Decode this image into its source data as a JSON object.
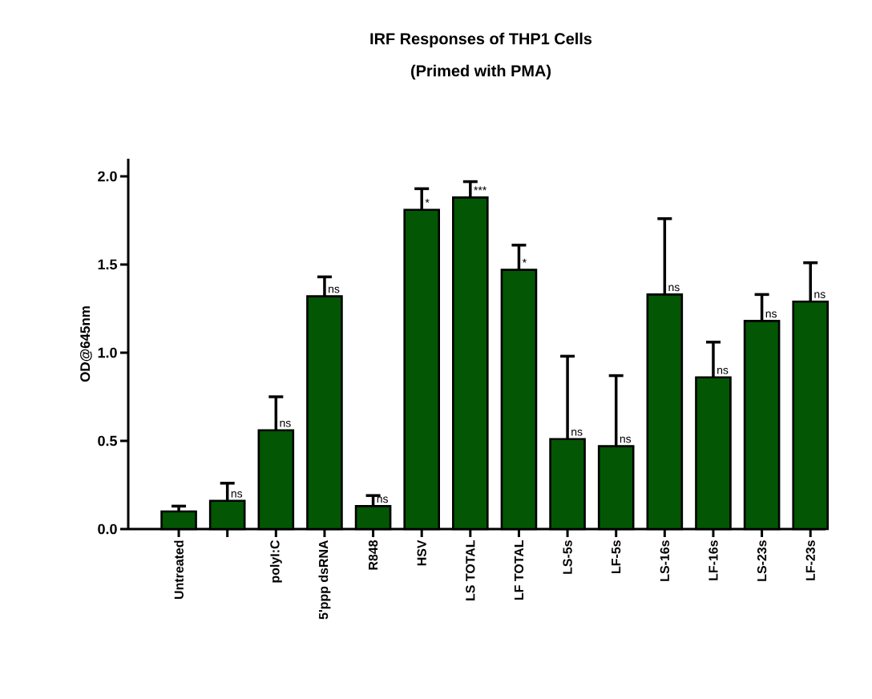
{
  "chart_data": {
    "type": "bar",
    "title": "IRF Responses of THP1 Cells",
    "subtitle": "(Primed with PMA)",
    "ylabel": "OD@645nm",
    "categories": [
      "Untreated",
      null,
      "polyI:C",
      "5'ppp dsRNA",
      "R848",
      "HSV",
      "LS TOTAL",
      "LF TOTAL",
      "LS-5s",
      "LF-5s",
      "LS-16s",
      "LF-16s",
      "LS-23s",
      "LF-23s"
    ],
    "values": [
      0.1,
      0.16,
      0.56,
      1.32,
      0.13,
      1.81,
      1.88,
      1.47,
      0.51,
      0.47,
      1.33,
      0.86,
      1.18,
      1.29
    ],
    "errors": [
      0.03,
      0.1,
      0.19,
      0.11,
      0.06,
      0.12,
      0.09,
      0.14,
      0.47,
      0.4,
      0.43,
      0.2,
      0.15,
      0.22
    ],
    "color": "#035603",
    "ylim": [
      0,
      2.1
    ],
    "yticks": [
      {
        "value": 0,
        "label": "0.0"
      },
      {
        "value": 0.5,
        "label": "0.5"
      },
      {
        "value": 1,
        "label": "1.0"
      },
      {
        "value": 1.5,
        "label": "1.5"
      },
      {
        "value": 2,
        "label": "2.0"
      }
    ],
    "value_labels": [
      null,
      "ns",
      "ns",
      "ns",
      "ns",
      "*",
      "***",
      "*",
      "ns",
      "ns",
      "ns",
      "ns",
      "ns",
      "ns"
    ]
  }
}
